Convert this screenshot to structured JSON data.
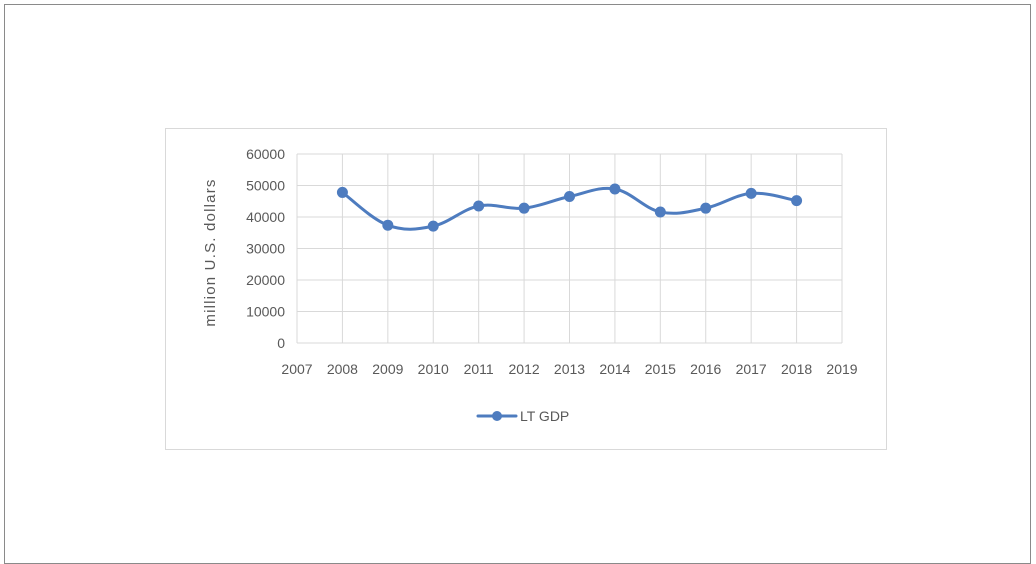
{
  "chart_data": {
    "type": "line",
    "title": "",
    "xlabel": "",
    "ylabel": "million U.S. dollars",
    "xlim": [
      2007,
      2019
    ],
    "ylim": [
      0,
      60000
    ],
    "x_ticks": [
      2007,
      2008,
      2009,
      2010,
      2011,
      2012,
      2013,
      2014,
      2015,
      2016,
      2017,
      2018,
      2019
    ],
    "y_ticks": [
      0,
      10000,
      20000,
      30000,
      40000,
      50000,
      60000
    ],
    "grid": true,
    "smooth": true,
    "legend_position": "bottom",
    "series": [
      {
        "name": "LT GDP",
        "color": "#4e7cbf",
        "x": [
          2008,
          2009,
          2010,
          2011,
          2012,
          2013,
          2014,
          2015,
          2016,
          2017,
          2018
        ],
        "y": [
          47800,
          37400,
          37100,
          43500,
          42800,
          46500,
          48900,
          41600,
          42800,
          47500,
          45200
        ]
      }
    ]
  }
}
